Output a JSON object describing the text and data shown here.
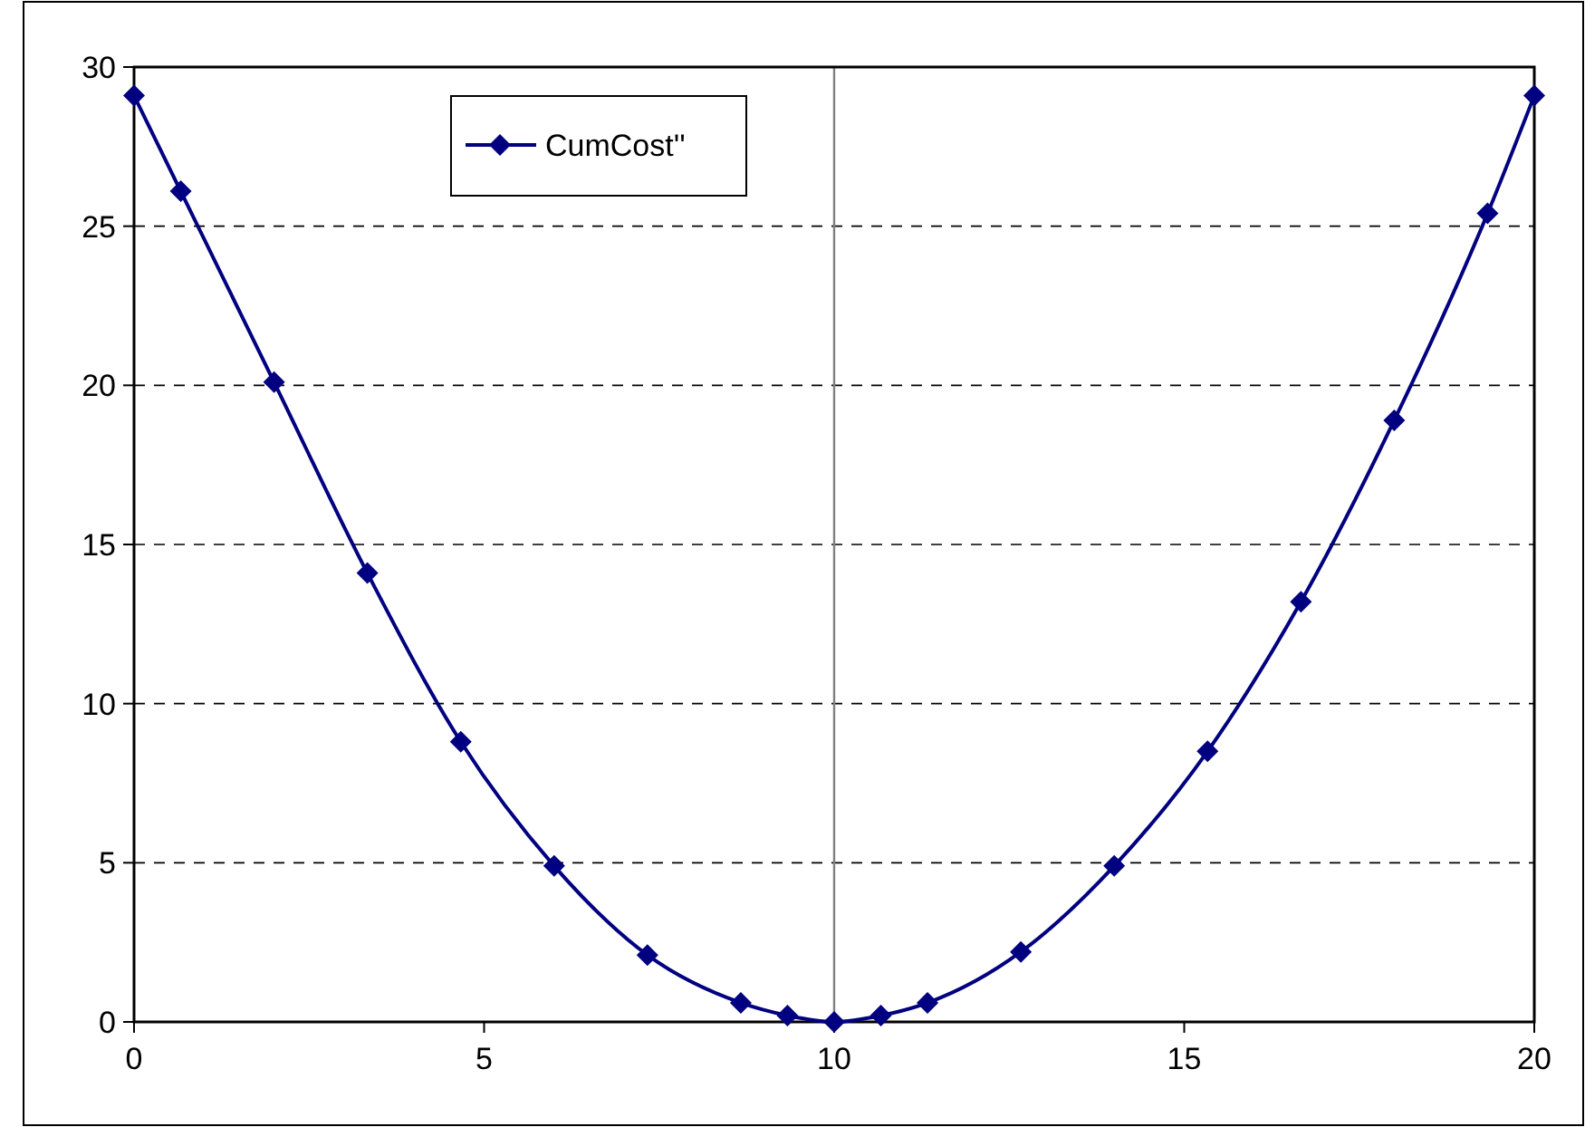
{
  "chart_data": {
    "type": "line",
    "x": [
      0,
      0.667,
      2,
      3.333,
      4.667,
      6,
      7.333,
      8.667,
      9.333,
      10,
      10.667,
      11.333,
      12.667,
      14,
      15.333,
      16.667,
      18,
      19.333,
      20
    ],
    "series": [
      {
        "name": "CumCost''",
        "color": "#000080",
        "values": [
          29.1,
          26.1,
          20.1,
          14.1,
          8.8,
          4.9,
          2.1,
          0.6,
          0.2,
          0,
          0.2,
          0.6,
          2.2,
          4.9,
          8.5,
          13.2,
          18.9,
          25.4,
          29.1
        ]
      }
    ],
    "xlim": [
      0,
      20
    ],
    "xticks": [
      0,
      5,
      10,
      15,
      20
    ],
    "ylim": [
      0,
      30
    ],
    "yticks": [
      0,
      5,
      10,
      15,
      20,
      25,
      30
    ],
    "grid": "y",
    "legend": "top left",
    "marker": "diamond",
    "line_style": "solid",
    "ref_lines": [
      {
        "axis": "x",
        "value": 10,
        "color": "#808080"
      }
    ]
  }
}
